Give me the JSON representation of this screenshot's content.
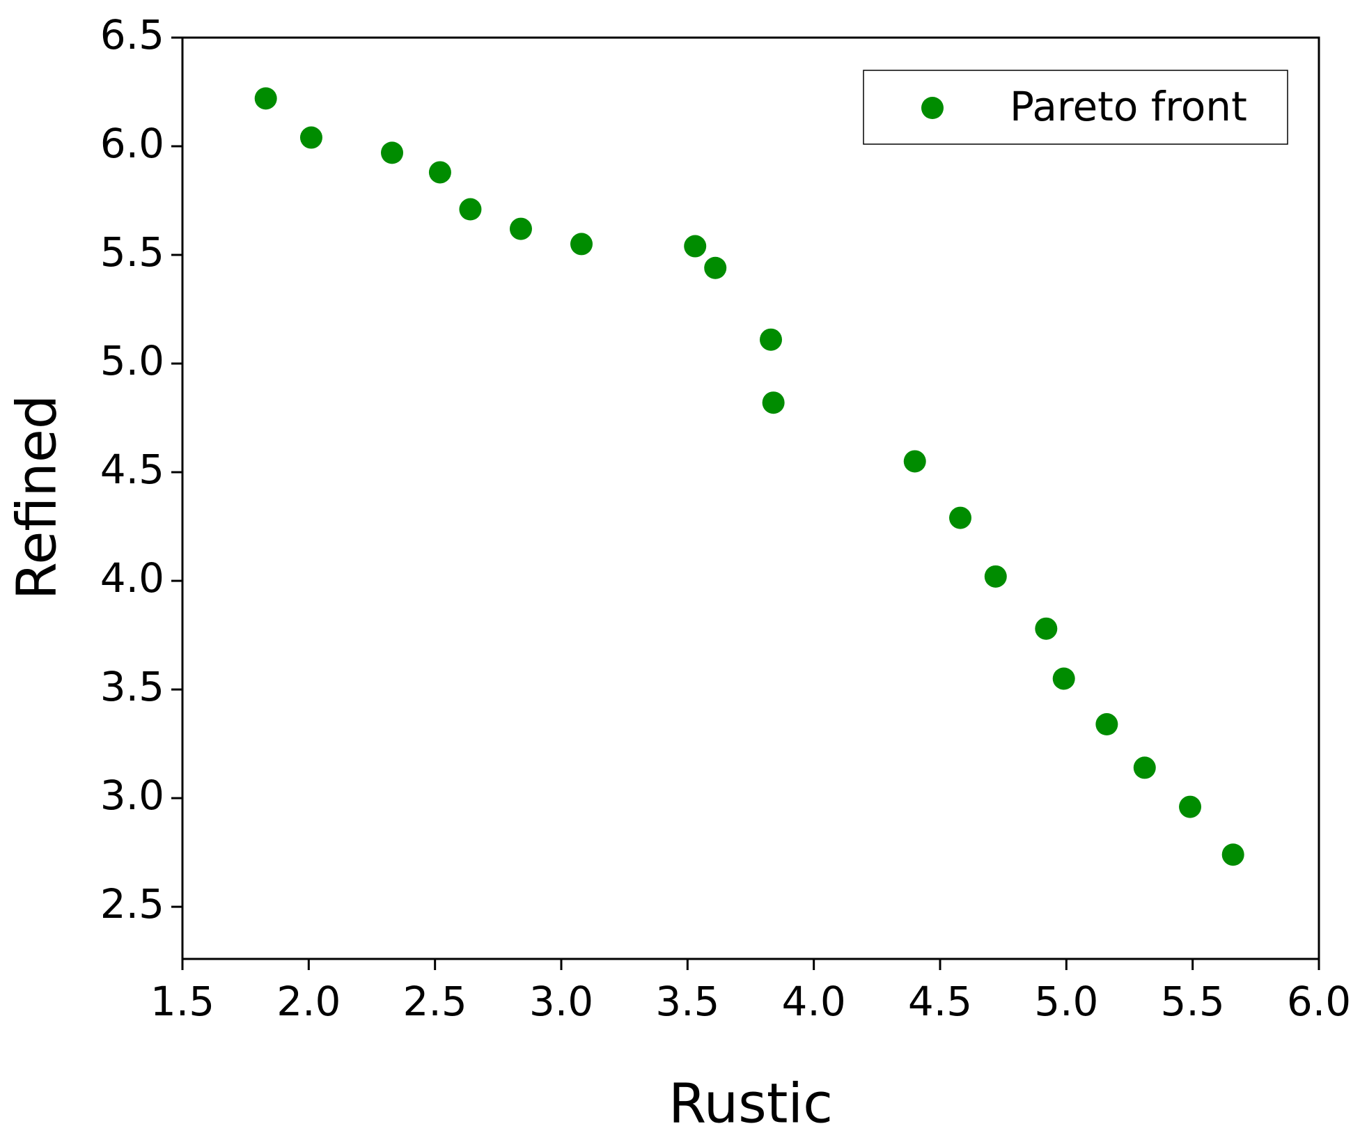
{
  "chart_data": {
    "type": "scatter",
    "xlabel": "Rustic",
    "ylabel": "Refined",
    "series": [
      {
        "name": "Pareto front",
        "color": "#008c00",
        "x": [
          1.83,
          2.01,
          2.33,
          2.52,
          2.64,
          2.84,
          3.08,
          3.53,
          3.61,
          3.83,
          3.84,
          4.4,
          4.58,
          4.72,
          4.92,
          4.99,
          5.16,
          5.31,
          5.49,
          5.66
        ],
        "values": [
          6.22,
          6.04,
          5.97,
          5.88,
          5.71,
          5.62,
          5.55,
          5.54,
          5.44,
          5.11,
          4.82,
          4.55,
          4.29,
          4.02,
          3.78,
          3.55,
          3.34,
          3.14,
          2.96,
          2.74
        ]
      }
    ],
    "xlim": [
      1.5,
      6.0
    ],
    "xticks": [
      1.5,
      {
        "value": 2.0,
        "label": "2.0"
      },
      2.5,
      {
        "value": 3.0,
        "label": "3.0"
      },
      3.5,
      {
        "value": 4.0,
        "label": "4.0"
      },
      4.5,
      {
        "value": 5.0,
        "label": "5.0"
      },
      5.5,
      {
        "value": 6.0,
        "label": "6.0"
      }
    ],
    "ylim": [
      2.26,
      6.5
    ],
    "yticks": [
      2.5,
      {
        "value": 3.0,
        "label": "3.0"
      },
      3.5,
      {
        "value": 4.0,
        "label": "4.0"
      },
      4.5,
      {
        "value": 5.0,
        "label": "5.0"
      },
      5.5,
      {
        "value": 6.0,
        "label": "6.0"
      },
      6.5
    ],
    "grid": false,
    "legend": "upper right"
  }
}
